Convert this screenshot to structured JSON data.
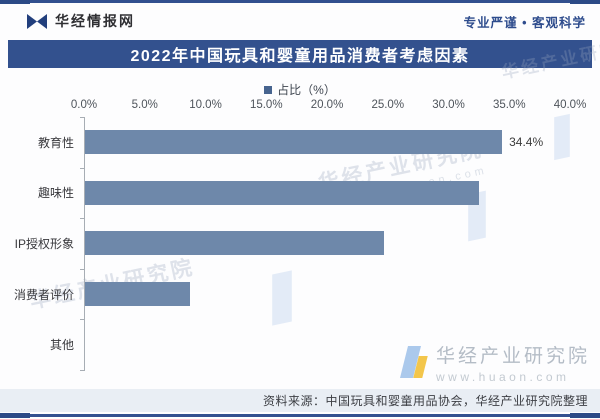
{
  "header": {
    "brand": "华经情报网",
    "slogan": "专业严谨 • 客观科学"
  },
  "title": "2022年中国玩具和婴童用品消费者考虑因素",
  "legend": {
    "label": "占比（%）"
  },
  "chart_data": {
    "type": "bar",
    "orientation": "horizontal",
    "title": "2022年中国玩具和婴童用品消费者考虑因素",
    "series_name": "占比（%）",
    "categories": [
      "教育性",
      "趣味性",
      "IP授权形象",
      "消费者评价",
      "其他"
    ],
    "values": [
      34.4,
      32.5,
      24.7,
      8.7,
      0
    ],
    "data_labels": [
      "34.4%",
      "",
      "",
      "",
      ""
    ],
    "xlim": [
      0,
      40
    ],
    "x_ticks": [
      "0.0%",
      "5.0%",
      "10.0%",
      "15.0%",
      "20.0%",
      "25.0%",
      "30.0%",
      "35.0%",
      "40.0%"
    ],
    "axis_label_position": "top",
    "grid": false,
    "legend_position": "top",
    "bar_color": "#6e88aa"
  },
  "watermark": {
    "text": "华经产业研究院",
    "url": "www.huaon.com"
  },
  "footer": {
    "source": "资料来源：中国玩具和婴童用品协会，华经产业研究院整理"
  },
  "colors": {
    "navy": "#32508f",
    "bar": "#6e88aa",
    "footer_bg": "#e9eef4"
  }
}
